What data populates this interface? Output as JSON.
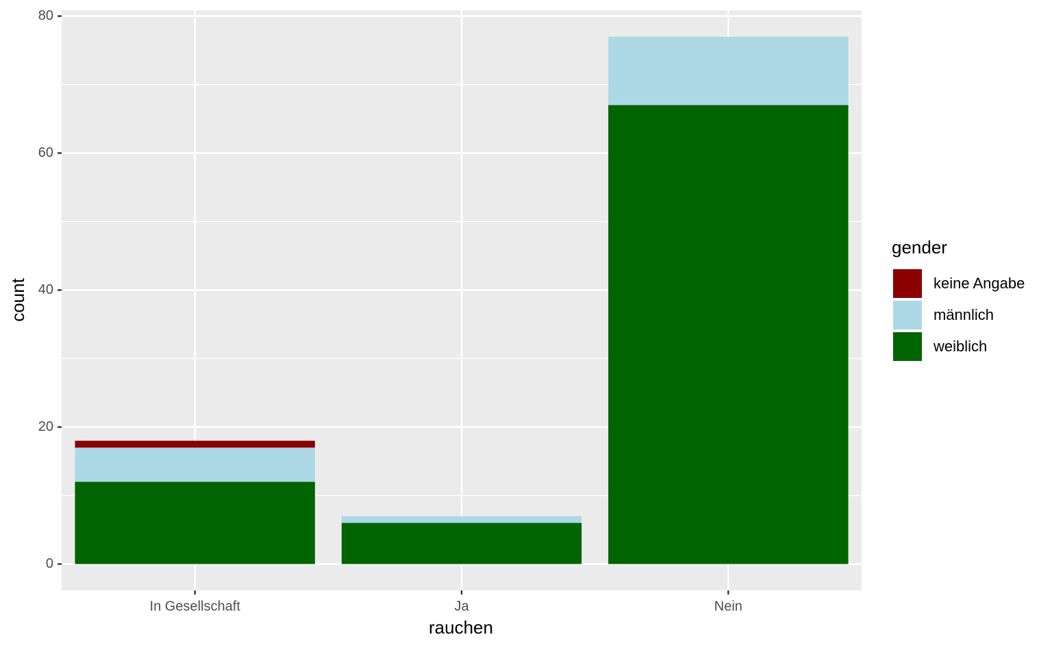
{
  "chart_data": {
    "type": "stacked_bar",
    "x_label": "rauchen",
    "y_label": "count",
    "categories": [
      "In Gesellschaft",
      "Ja",
      "Nein"
    ],
    "series": [
      {
        "name": "keine Angabe",
        "color": "#8b0000",
        "values": [
          1,
          0,
          0
        ]
      },
      {
        "name": "männlich",
        "color": "#add8e6",
        "values": [
          5,
          1,
          10
        ]
      },
      {
        "name": "weiblich",
        "color": "#006400",
        "values": [
          12,
          6,
          67
        ]
      }
    ],
    "legend_title": "gender",
    "ylim": [
      -3.85,
      80.85
    ],
    "yticks": [
      0,
      20,
      40,
      60,
      80
    ],
    "minor_yticks": [
      10,
      30,
      50,
      70
    ],
    "grid": true,
    "legend_position": "right"
  }
}
